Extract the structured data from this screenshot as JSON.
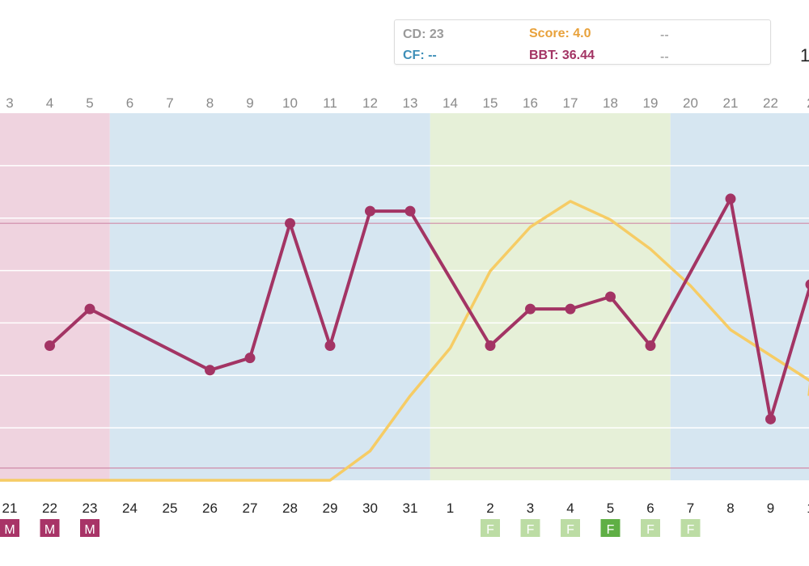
{
  "info": {
    "cd": "CD: 23",
    "cf": "CF: --",
    "score": "Score: 4.0",
    "bbt": "BBT: 36.44",
    "dash1": "--",
    "dash2": "--",
    "edge_value": "1"
  },
  "colors": {
    "menstrual_band": "#efd3df",
    "blue_band": "#d6e6f1",
    "fertile_band": "#e6f0d8",
    "bbt_line": "#a33464",
    "score_line": "#f6cc65",
    "marker_m": "#a83467",
    "marker_f_light": "#bcdca4",
    "marker_f_dark": "#5faf45",
    "reference_line": "#cf8aa8"
  },
  "chart_data": {
    "type": "line",
    "cycle_days": [
      "3",
      "4",
      "5",
      "6",
      "7",
      "8",
      "9",
      "10",
      "11",
      "12",
      "13",
      "14",
      "15",
      "16",
      "17",
      "18",
      "19",
      "20",
      "21",
      "22",
      "2"
    ],
    "dates": [
      "21",
      "22",
      "23",
      "24",
      "25",
      "26",
      "27",
      "28",
      "29",
      "30",
      "31",
      "1",
      "2",
      "3",
      "4",
      "5",
      "6",
      "7",
      "8",
      "9",
      "1"
    ],
    "bands": [
      {
        "phase": "menstrual",
        "from_index": 0,
        "to_index": 2
      },
      {
        "phase": "follicular",
        "from_index": 3,
        "to_index": 10
      },
      {
        "phase": "fertile",
        "from_index": 11,
        "to_index": 16
      },
      {
        "phase": "luteal",
        "from_index": 17,
        "to_index": 20
      }
    ],
    "ylim": [
      36.3,
      36.6
    ],
    "reference_lines": [
      36.51,
      36.31
    ],
    "series": [
      {
        "key": "bbt",
        "values": [
          null,
          36.41,
          36.44,
          null,
          null,
          36.39,
          36.4,
          36.51,
          36.41,
          36.52,
          36.52,
          null,
          36.41,
          36.44,
          36.44,
          36.45,
          36.41,
          null,
          36.53,
          36.35,
          36.46
        ]
      },
      {
        "key": "score",
        "values": [
          0.0,
          0.0,
          0.0,
          0.0,
          0.0,
          0.0,
          0.0,
          0.0,
          0.0,
          0.8,
          2.3,
          3.6,
          5.7,
          6.9,
          7.6,
          7.1,
          6.3,
          5.3,
          4.1,
          3.4,
          2.7
        ]
      }
    ],
    "score_scale": [
      0,
      10
    ],
    "markers": [
      {
        "index": 0,
        "label": "M",
        "style": "m"
      },
      {
        "index": 1,
        "label": "M",
        "style": "m"
      },
      {
        "index": 2,
        "label": "M",
        "style": "m"
      },
      {
        "index": 12,
        "label": "F",
        "style": "f-light"
      },
      {
        "index": 13,
        "label": "F",
        "style": "f-light"
      },
      {
        "index": 14,
        "label": "F",
        "style": "f-light"
      },
      {
        "index": 15,
        "label": "F",
        "style": "f-dark"
      },
      {
        "index": 16,
        "label": "F",
        "style": "f-light"
      },
      {
        "index": 17,
        "label": "F",
        "style": "f-light"
      }
    ],
    "grid": true
  }
}
